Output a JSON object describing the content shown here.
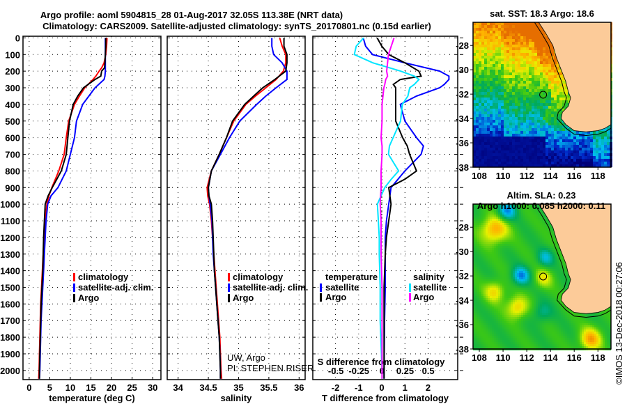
{
  "title_line1": "Argo profile: aoml 5904815_28 01-Aug-2017 32.05S 113.38E (NRT data)",
  "title_line2": "Climatology: CARS2009. Satellite-adjusted climatology: synTS_20170801.nc (0.15d earlier)",
  "credit_line1": "UW, Argo",
  "credit_line2": "PI: STEPHEN RISER",
  "watermark": "©IMOS 13-Dec-2018 00:27:06",
  "colors": {
    "climatology": "#ff0000",
    "satellite": "#0000ff",
    "argo": "#000000",
    "sal_satellite": "#00e5ff",
    "sal_argo": "#ff00ff",
    "land": "#fccb99"
  },
  "chart_data": [
    {
      "type": "line",
      "name": "temperature-profile",
      "xlabel": "temperature (deg C)",
      "ylabel": "depth",
      "xlim": [
        -1.5,
        32
      ],
      "ylim": [
        2055,
        -10
      ],
      "xticks": [
        0,
        5,
        10,
        15,
        20,
        25,
        30
      ],
      "yticks": [
        0,
        100,
        200,
        300,
        400,
        500,
        600,
        700,
        800,
        900,
        1000,
        1100,
        1200,
        1300,
        1400,
        1500,
        1600,
        1700,
        1800,
        1900,
        2000
      ],
      "grid": true,
      "legend": [
        "climatology",
        "satellite-adj. clim.",
        "Argo"
      ],
      "depth": [
        0,
        50,
        100,
        150,
        180,
        200,
        230,
        250,
        300,
        350,
        400,
        500,
        600,
        700,
        800,
        900,
        950,
        1000,
        1100,
        1200,
        1300,
        1400,
        1500,
        1600,
        1700,
        1800,
        1900,
        2000,
        2050
      ],
      "series": [
        {
          "name": "climatology",
          "color": "#ff0000",
          "values": [
            18.9,
            18.8,
            18.6,
            18.2,
            17.6,
            17.0,
            16.2,
            15.5,
            13.5,
            12.2,
            11.0,
            9.6,
            9.0,
            8.5,
            7.2,
            5.5,
            4.8,
            4.3,
            3.9,
            3.6,
            3.4,
            3.2,
            3.0,
            2.8,
            2.7,
            2.6,
            2.5,
            2.4,
            2.3
          ]
        },
        {
          "name": "satellite-adj. clim.",
          "color": "#0000ff",
          "values": [
            18.5,
            18.5,
            18.5,
            18.5,
            18.5,
            18.5,
            18.4,
            18.2,
            16.0,
            14.5,
            13.0,
            11.5,
            11.0,
            10.0,
            9.0,
            7.0,
            5.3,
            4.5,
            4.1,
            3.9,
            3.7,
            3.5,
            3.3,
            3.1,
            2.9,
            2.8,
            2.7,
            2.6,
            2.5
          ]
        },
        {
          "name": "Argo",
          "color": "#000000",
          "values": [
            18.6,
            18.6,
            18.5,
            18.4,
            18.3,
            17.6,
            17.4,
            16.0,
            13.2,
            11.8,
            10.7,
            9.8,
            9.4,
            9.0,
            7.8,
            5.6,
            4.6,
            3.9,
            3.7,
            3.5,
            3.4,
            3.3,
            3.1,
            2.9,
            2.8,
            2.7,
            2.6,
            2.5,
            2.5
          ]
        }
      ]
    },
    {
      "type": "line",
      "name": "salinity-profile",
      "xlabel": "salinity",
      "xlim": [
        33.82,
        36.1
      ],
      "ylim": [
        2055,
        -10
      ],
      "xticks": [
        34,
        34.5,
        35,
        35.5,
        36
      ],
      "xticklabels": [
        "34",
        "34.5",
        "35",
        "35.5",
        "36"
      ],
      "grid": true,
      "legend": [
        "climatology",
        "satellite-adj. clim.",
        "Argo"
      ],
      "depth": [
        0,
        50,
        100,
        150,
        200,
        250,
        300,
        350,
        400,
        500,
        600,
        700,
        800,
        900,
        950,
        1000,
        1100,
        1200,
        1300,
        1400,
        1500,
        1600,
        1700,
        1800,
        1900,
        2000,
        2050
      ],
      "series": [
        {
          "name": "climatology",
          "color": "#ff0000",
          "values": [
            35.68,
            35.72,
            35.78,
            35.78,
            35.74,
            35.62,
            35.45,
            35.28,
            35.12,
            34.92,
            34.8,
            34.68,
            34.55,
            34.48,
            34.49,
            34.52,
            34.55,
            34.57,
            34.59,
            34.61,
            34.63,
            34.65,
            34.67,
            34.69,
            34.7,
            34.71,
            34.72
          ]
        },
        {
          "name": "satellite-adj. clim.",
          "color": "#0000ff",
          "values": [
            35.55,
            35.55,
            35.58,
            35.72,
            35.8,
            35.8,
            35.62,
            35.45,
            35.3,
            35.02,
            34.85,
            34.7,
            34.55,
            34.5,
            34.51,
            34.53,
            34.56,
            34.57,
            34.58,
            34.6,
            34.62,
            34.64,
            34.66,
            34.68,
            34.69,
            34.7,
            34.7
          ]
        },
        {
          "name": "Argo",
          "color": "#000000",
          "values": [
            35.75,
            35.75,
            35.8,
            35.8,
            35.78,
            35.6,
            35.4,
            35.25,
            35.1,
            34.9,
            34.8,
            34.68,
            34.55,
            34.5,
            34.51,
            34.55,
            34.57,
            34.58,
            34.59,
            34.6,
            34.62,
            34.64,
            34.66,
            34.68,
            34.69,
            34.7,
            34.7
          ]
        }
      ]
    },
    {
      "type": "line",
      "name": "difference-profile",
      "xlabel": "T difference from climatology",
      "xlabel2": "S difference from climatology",
      "xlim": [
        -2.98,
        3.28
      ],
      "xlim_s": [
        -0.75,
        0.82
      ],
      "ylim": [
        2055,
        -10
      ],
      "xticks": [
        -2,
        -1,
        0,
        1,
        2
      ],
      "xticks_s": [
        -0.5,
        -0.25,
        0,
        0.25,
        0.5
      ],
      "xticklabels_s": [
        "-0.5",
        "-0.25",
        "0",
        "0.25",
        "0.5"
      ],
      "grid": true,
      "legend_temperature": {
        "title": "temperature",
        "items": [
          "satellite",
          "Argo"
        ]
      },
      "legend_salinity": {
        "title": "salinity",
        "items": [
          "satellite",
          "Argo"
        ]
      },
      "depth": [
        0,
        50,
        100,
        150,
        200,
        230,
        250,
        280,
        300,
        350,
        400,
        500,
        600,
        650,
        700,
        800,
        850,
        900,
        1000,
        1100,
        1200,
        1300,
        1500,
        1700,
        2000,
        2050
      ],
      "series": [
        {
          "name": "T satellite",
          "axis": "T",
          "color": "#0000ff",
          "values": [
            -0.8,
            -0.7,
            -0.4,
            1.0,
            2.5,
            2.9,
            2.9,
            2.7,
            2.5,
            1.5,
            0.8,
            1.0,
            1.5,
            1.8,
            1.7,
            1.0,
            0.7,
            0.4,
            0.3,
            0.2,
            0.15,
            0.15,
            0.15,
            0.12,
            0.1,
            0.1
          ]
        },
        {
          "name": "T Argo",
          "axis": "T",
          "color": "#000000",
          "values": [
            -0.2,
            0.0,
            0.3,
            1.0,
            1.6,
            1.7,
            0.8,
            0.5,
            0.6,
            0.6,
            0.6,
            0.6,
            0.9,
            1.1,
            1.2,
            1.5,
            1.0,
            0.3,
            0.4,
            0.3,
            0.2,
            0.15,
            0.1,
            0.1,
            0.1,
            0.1
          ]
        },
        {
          "name": "S satellite",
          "axis": "S",
          "color": "#00e5ff",
          "values": [
            -0.2,
            -0.28,
            -0.3,
            -0.1,
            0.2,
            0.35,
            0.4,
            0.35,
            0.3,
            0.28,
            0.22,
            0.2,
            0.12,
            0.08,
            0.07,
            0.18,
            0.1,
            0.03,
            -0.05,
            -0.04,
            -0.03,
            -0.03,
            -0.02,
            -0.02,
            0.0,
            0.0
          ]
        },
        {
          "name": "S Argo",
          "axis": "S",
          "color": "#ff00ff",
          "values": [
            0.13,
            0.1,
            0.07,
            0.06,
            0.05,
            0.06,
            0.04,
            0.03,
            0.02,
            0.01,
            0.0,
            0.0,
            -0.01,
            0.0,
            0.0,
            -0.01,
            -0.01,
            -0.01,
            -0.02,
            -0.01,
            -0.01,
            -0.01,
            0.0,
            0.0,
            0.0,
            0.0
          ]
        }
      ]
    },
    {
      "type": "heatmap",
      "name": "sst-map",
      "title": "sat. SST: 18.3 Argo: 18.6",
      "xlim": [
        107.47,
        119.1
      ],
      "ylim": [
        -38,
        -26.1
      ],
      "xticks": [
        108,
        110,
        112,
        114,
        116,
        118
      ],
      "yticks": [
        -28,
        -30,
        -32,
        -34,
        -36,
        -38
      ],
      "argo_position": [
        113.38,
        -32.05
      ]
    },
    {
      "type": "heatmap",
      "name": "sla-map",
      "title_line1": "Altim. SLA: 0.23",
      "title_line2": "Argo h1000: 0.085 h2000: 0.11",
      "xlim": [
        107.47,
        119.1
      ],
      "ylim": [
        -38,
        -26.1
      ],
      "xticks": [
        108,
        110,
        112,
        114,
        116,
        118
      ],
      "yticks": [
        -28,
        -30,
        -32,
        -34,
        -36,
        -38
      ],
      "argo_position": [
        113.38,
        -32.05
      ]
    }
  ]
}
